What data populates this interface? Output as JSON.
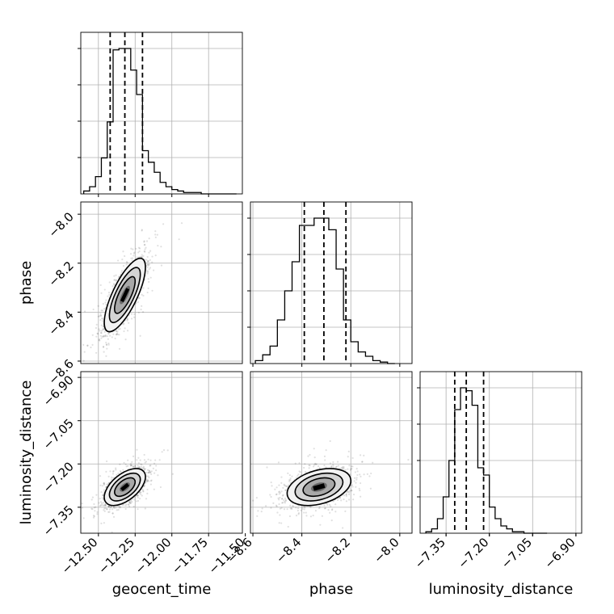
{
  "chart_data": {
    "type": "corner",
    "parameters": [
      "geocent_time",
      "phase",
      "luminosity_distance"
    ],
    "ranges": {
      "geocent_time": [
        -12.62,
        -11.52
      ],
      "phase": [
        -8.61,
        -7.95
      ],
      "luminosity_distance": [
        -7.44,
        -6.88
      ]
    },
    "ticks": {
      "geocent_time": [
        -12.5,
        -12.25,
        -12.0,
        -11.75,
        -11.5
      ],
      "phase": [
        -8.6,
        -8.4,
        -8.2,
        -8.0
      ],
      "luminosity_distance": [
        -7.35,
        -7.2,
        -7.05,
        -6.9
      ]
    },
    "tick_labels": {
      "geocent_time": [
        "−12.50",
        "−12.25",
        "−12.00",
        "−11.75",
        "−11.50"
      ],
      "phase": [
        "−8.6",
        "−8.4",
        "−8.2",
        "−8.0"
      ],
      "luminosity_distance": [
        "−7.35",
        "−7.20",
        "−7.05",
        "−6.90"
      ]
    },
    "quantiles": {
      "geocent_time": [
        -12.42,
        -12.32,
        -12.2
      ],
      "phase": [
        -8.39,
        -8.31,
        -8.22
      ],
      "luminosity_distance": [
        -7.32,
        -7.28,
        -7.22
      ]
    },
    "histograms": {
      "geocent_time": {
        "edges": [
          -12.6,
          -12.56,
          -12.52,
          -12.48,
          -12.44,
          -12.4,
          -12.36,
          -12.32,
          -12.28,
          -12.24,
          -12.2,
          -12.16,
          -12.12,
          -12.08,
          -12.04,
          -12.0,
          -11.96,
          -11.92,
          -11.88,
          -11.84,
          -11.8,
          -11.76,
          -11.72,
          -11.68,
          -11.64,
          -11.6,
          -11.56
        ],
        "counts": [
          2,
          5,
          12,
          25,
          50,
          100,
          101,
          101,
          86,
          69,
          30,
          22,
          15,
          8,
          5,
          3,
          2,
          1,
          1,
          1,
          0,
          0,
          0,
          0,
          0,
          0
        ]
      },
      "phase": {
        "edges": [
          -8.59,
          -8.56,
          -8.53,
          -8.5,
          -8.47,
          -8.44,
          -8.41,
          -8.38,
          -8.35,
          -8.32,
          -8.29,
          -8.26,
          -8.23,
          -8.2,
          -8.17,
          -8.14,
          -8.11,
          -8.08,
          -8.05,
          -8.02
        ],
        "counts": [
          2,
          6,
          12,
          30,
          50,
          70,
          95,
          95,
          100,
          100,
          92,
          65,
          30,
          15,
          8,
          5,
          2,
          1,
          0
        ]
      },
      "luminosity_distance": {
        "edges": [
          -7.42,
          -7.4,
          -7.38,
          -7.36,
          -7.34,
          -7.32,
          -7.3,
          -7.28,
          -7.26,
          -7.24,
          -7.22,
          -7.2,
          -7.18,
          -7.16,
          -7.14,
          -7.12,
          -7.1,
          -7.08,
          -7.06,
          -7.04,
          -7.02,
          -7.0
        ],
        "counts": [
          1,
          3,
          10,
          25,
          50,
          85,
          100,
          98,
          88,
          45,
          40,
          18,
          10,
          5,
          3,
          1,
          1,
          0,
          0,
          0,
          0
        ]
      }
    },
    "pairs": [
      {
        "x": "geocent_time",
        "y": "phase",
        "center": [
          -12.32,
          -8.33
        ],
        "sigma": [
          0.07,
          0.075
        ],
        "correlation": 0.75,
        "contour_levels": [
          0.5,
          1.0,
          1.5,
          2.0
        ]
      },
      {
        "x": "geocent_time",
        "y": "luminosity_distance",
        "center": [
          -12.32,
          -7.28
        ],
        "sigma": [
          0.07,
          0.032
        ],
        "correlation": 0.55,
        "contour_levels": [
          0.5,
          1.0,
          1.5,
          2.0
        ]
      },
      {
        "x": "phase",
        "y": "luminosity_distance",
        "center": [
          -8.33,
          -7.28
        ],
        "sigma": [
          0.065,
          0.032
        ],
        "correlation": 0.35,
        "contour_levels": [
          0.5,
          1.0,
          1.5,
          2.0
        ]
      }
    ],
    "grid": true,
    "colors": {
      "ink": "#000000",
      "grid": "#b0b0b0",
      "fill": "#808080"
    }
  }
}
